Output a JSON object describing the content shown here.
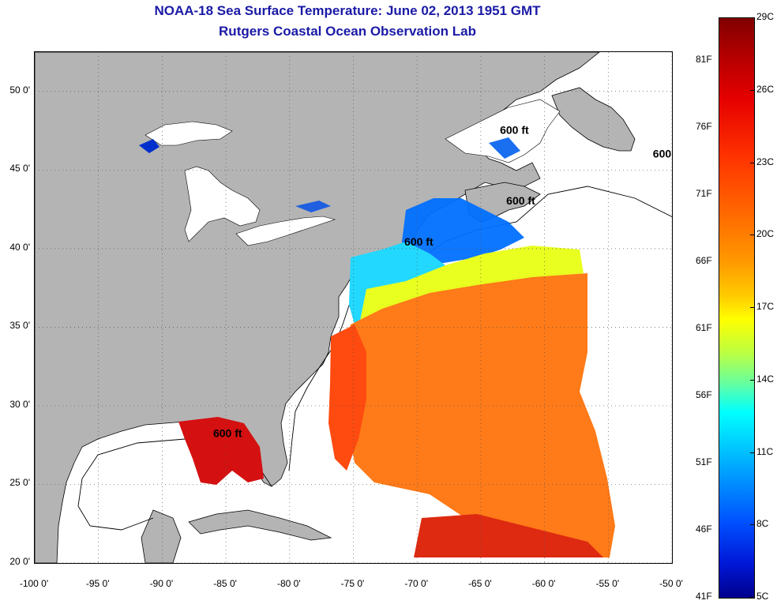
{
  "titles": {
    "line1": "NOAA-18 Sea Surface Temperature:  June 02, 2013 1951 GMT",
    "line2": "Rutgers Coastal Ocean Observation Lab"
  },
  "map": {
    "lon_range": [
      -100,
      -50
    ],
    "lat_range": [
      20,
      52.5
    ],
    "lat_ticks": [
      {
        "value": 50,
        "label": "50 0'"
      },
      {
        "value": 45,
        "label": "45 0'"
      },
      {
        "value": 40,
        "label": "40 0'"
      },
      {
        "value": 35,
        "label": "35 0'"
      },
      {
        "value": 30,
        "label": "30 0'"
      },
      {
        "value": 25,
        "label": "25 0'"
      },
      {
        "value": 20,
        "label": "20 0'"
      }
    ],
    "lon_ticks": [
      {
        "value": -100,
        "label": "-100 0'"
      },
      {
        "value": -95,
        "label": "-95 0'"
      },
      {
        "value": -90,
        "label": "-90 0'"
      },
      {
        "value": -85,
        "label": "-85 0'"
      },
      {
        "value": -80,
        "label": "-80 0'"
      },
      {
        "value": -75,
        "label": "-75 0'"
      },
      {
        "value": -70,
        "label": "-70 0'"
      },
      {
        "value": -65,
        "label": "-65 0'"
      },
      {
        "value": -60,
        "label": "-60 0'"
      },
      {
        "value": -55,
        "label": "-55 0'"
      },
      {
        "value": -50,
        "label": "-50 0'"
      }
    ],
    "land_color": "#b4b4b4",
    "contour_label": "600 ft",
    "contour_labels": [
      {
        "lon": -63.5,
        "lat": 47.3
      },
      {
        "lon": -51.5,
        "lat": 45.8
      },
      {
        "lon": -63,
        "lat": 42.8
      },
      {
        "lon": -71,
        "lat": 40.2
      },
      {
        "lon": -86,
        "lat": 28
      }
    ]
  },
  "colorbar": {
    "range_c": [
      5,
      29
    ],
    "celsius_labels": [
      "29C",
      "26C",
      "23C",
      "20C",
      "17C",
      "14C",
      "11C",
      "8C",
      "5C"
    ],
    "fahrenheit_labels": [
      "81F",
      "76F",
      "71F",
      "66F",
      "61F",
      "56F",
      "51F",
      "46F",
      "41F"
    ],
    "fahrenheit_values": [
      81,
      76,
      71,
      66,
      61,
      56,
      51,
      46,
      41
    ],
    "colors": [
      "#800000",
      "#e60000",
      "#ff6a00",
      "#ffcc00",
      "#ffff00",
      "#66ffa0",
      "#00ffff",
      "#0090ff",
      "#0018d8",
      "#00008c"
    ]
  }
}
